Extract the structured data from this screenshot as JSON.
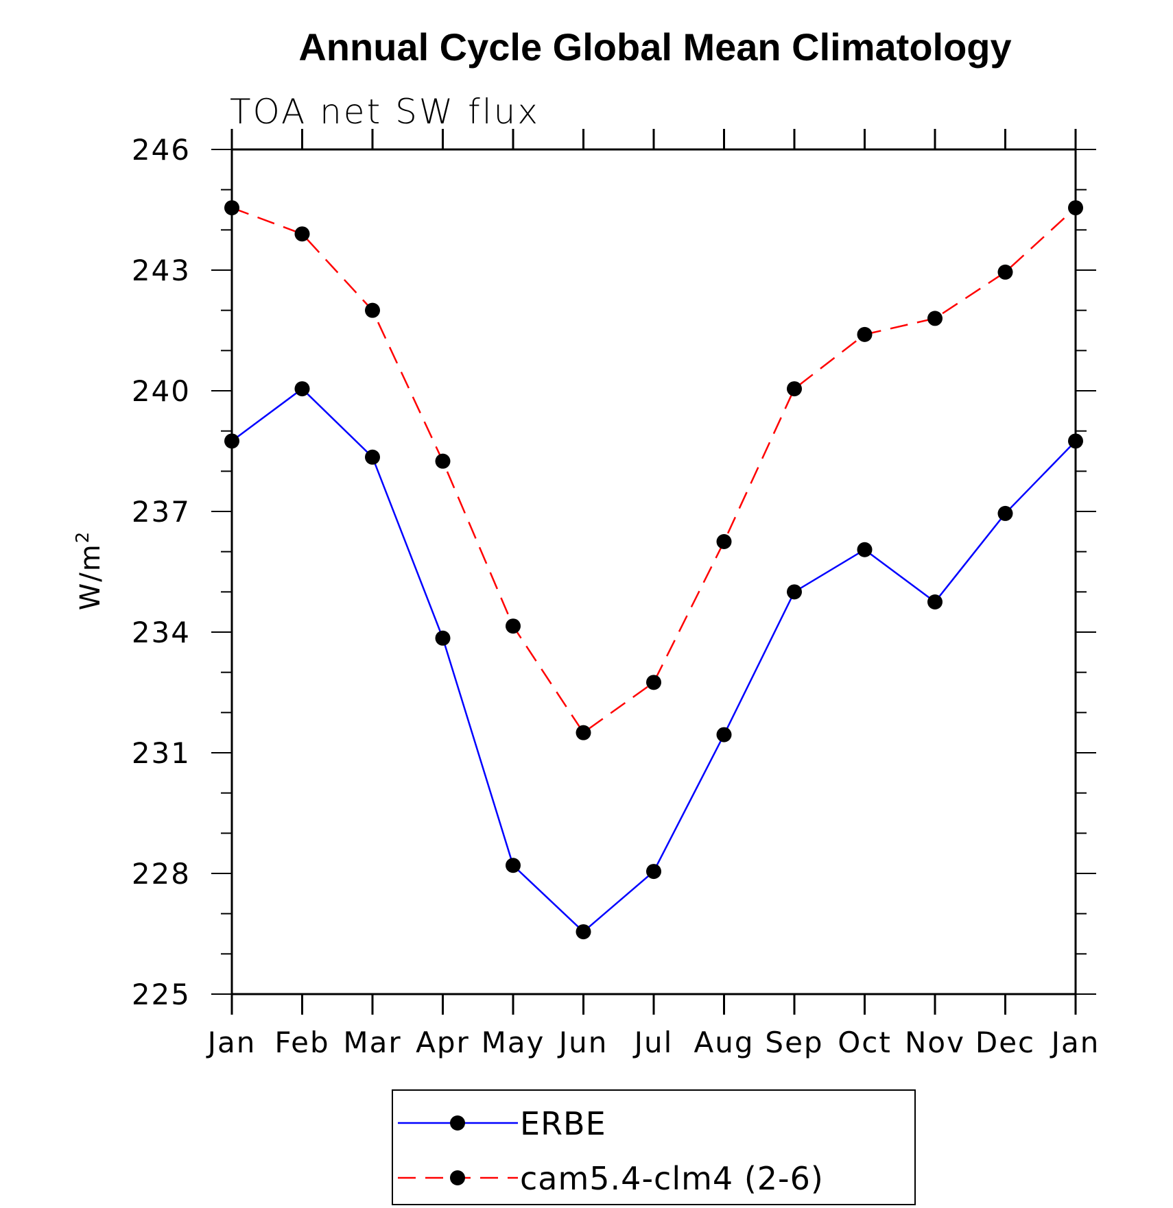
{
  "chart_data": {
    "type": "line",
    "title": "Annual Cycle Global Mean Climatology",
    "subtitle": "TOA net SW flux",
    "ylabel": "W/m",
    "ylabel_superscript": "2",
    "xlabel": "",
    "categories": [
      "Jan",
      "Feb",
      "Mar",
      "Apr",
      "May",
      "Jun",
      "Jul",
      "Aug",
      "Sep",
      "Oct",
      "Nov",
      "Dec",
      "Jan"
    ],
    "ylim": [
      225,
      246
    ],
    "yticks": [
      "246",
      "243",
      "240",
      "237",
      "234",
      "231",
      "228",
      "225"
    ],
    "grid": false,
    "legend_position": "bottom",
    "series": [
      {
        "name": "ERBE",
        "color": "#0000ff",
        "line_style": "solid",
        "marker": "filled-circle",
        "values": [
          238.75,
          240.05,
          238.35,
          233.85,
          228.2,
          226.55,
          228.05,
          231.45,
          235.0,
          236.05,
          234.75,
          236.95,
          238.75
        ]
      },
      {
        "name": "cam5.4-clm4 (2-6)",
        "color": "#ff0000",
        "line_style": "dashed",
        "marker": "filled-circle",
        "values": [
          244.55,
          243.9,
          242.0,
          238.25,
          234.15,
          231.5,
          232.75,
          236.25,
          240.05,
          241.4,
          241.8,
          242.95,
          244.55
        ]
      }
    ]
  }
}
